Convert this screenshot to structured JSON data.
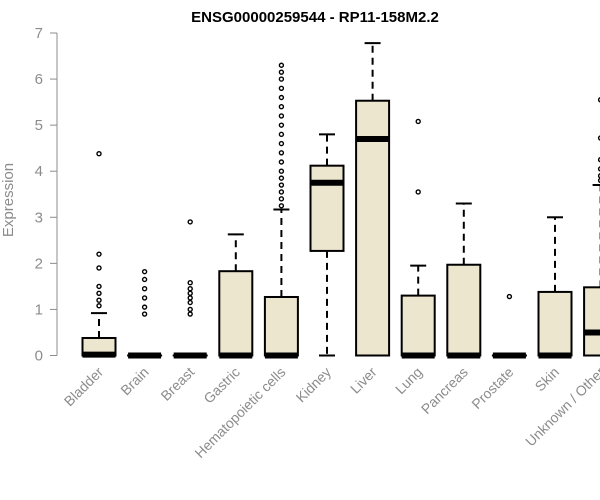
{
  "chart_data": {
    "type": "boxplot",
    "title": "ENSG00000259544 - RP11-158M2.2",
    "ylabel": "Expression",
    "xlabel": "",
    "ylim": [
      0,
      7
    ],
    "yticks": [
      0,
      1,
      2,
      3,
      4,
      5,
      6,
      7
    ],
    "box_color": "#ede6cf",
    "categories": [
      "Bladder",
      "Brain",
      "Breast",
      "Gastric",
      "Hematopoietic cells",
      "Kidney",
      "Liver",
      "Lung",
      "Pancreas",
      "Prostate",
      "Skin",
      "Unknown / Other"
    ],
    "boxes": [
      {
        "q1": 0,
        "median": 0.02,
        "q3": 0.38,
        "whisker_low": 0,
        "whisker_high": 0.92,
        "outliers": [
          1.08,
          1.2,
          1.35,
          1.5,
          1.9,
          2.2,
          4.38
        ]
      },
      {
        "q1": 0,
        "median": 0,
        "q3": 0,
        "whisker_low": 0,
        "whisker_high": 0,
        "outliers": [
          0.9,
          1.05,
          1.25,
          1.45,
          1.65,
          1.82
        ]
      },
      {
        "q1": 0,
        "median": 0,
        "q3": 0,
        "whisker_low": 0,
        "whisker_high": 0,
        "outliers": [
          0.9,
          1.0,
          1.15,
          1.25,
          1.35,
          1.45,
          1.58,
          2.9
        ]
      },
      {
        "q1": 0,
        "median": 0,
        "q3": 1.83,
        "whisker_low": 0,
        "whisker_high": 2.63,
        "outliers": []
      },
      {
        "q1": 0,
        "median": 0,
        "q3": 1.27,
        "whisker_low": 0,
        "whisker_high": 3.17,
        "outliers": [
          3.25,
          3.4,
          3.55,
          3.7,
          3.85,
          4.0,
          4.2,
          4.4,
          4.6,
          4.8,
          5.0,
          5.2,
          5.4,
          5.6,
          5.8,
          6.0,
          6.15,
          6.3
        ]
      },
      {
        "q1": 2.27,
        "median": 3.75,
        "q3": 4.12,
        "whisker_low": 0,
        "whisker_high": 4.8,
        "outliers": []
      },
      {
        "q1": 0,
        "median": 4.7,
        "q3": 5.53,
        "whisker_low": 0,
        "whisker_high": 6.78,
        "outliers": []
      },
      {
        "q1": 0,
        "median": 0,
        "q3": 1.3,
        "whisker_low": 0,
        "whisker_high": 1.95,
        "outliers": [
          3.55,
          5.08
        ]
      },
      {
        "q1": 0,
        "median": 0,
        "q3": 1.97,
        "whisker_low": 0,
        "whisker_high": 3.3,
        "outliers": []
      },
      {
        "q1": 0,
        "median": 0,
        "q3": 0,
        "whisker_low": 0,
        "whisker_high": 0,
        "outliers": [
          1.28
        ]
      },
      {
        "q1": 0,
        "median": 0,
        "q3": 1.38,
        "whisker_low": 0,
        "whisker_high": 3.0,
        "outliers": []
      },
      {
        "q1": 0,
        "median": 0.5,
        "q3": 1.48,
        "whisker_low": 0,
        "whisker_high": 3.7,
        "outliers": [
          3.8,
          3.9,
          4.05,
          4.25,
          4.72,
          5.55
        ]
      }
    ]
  }
}
